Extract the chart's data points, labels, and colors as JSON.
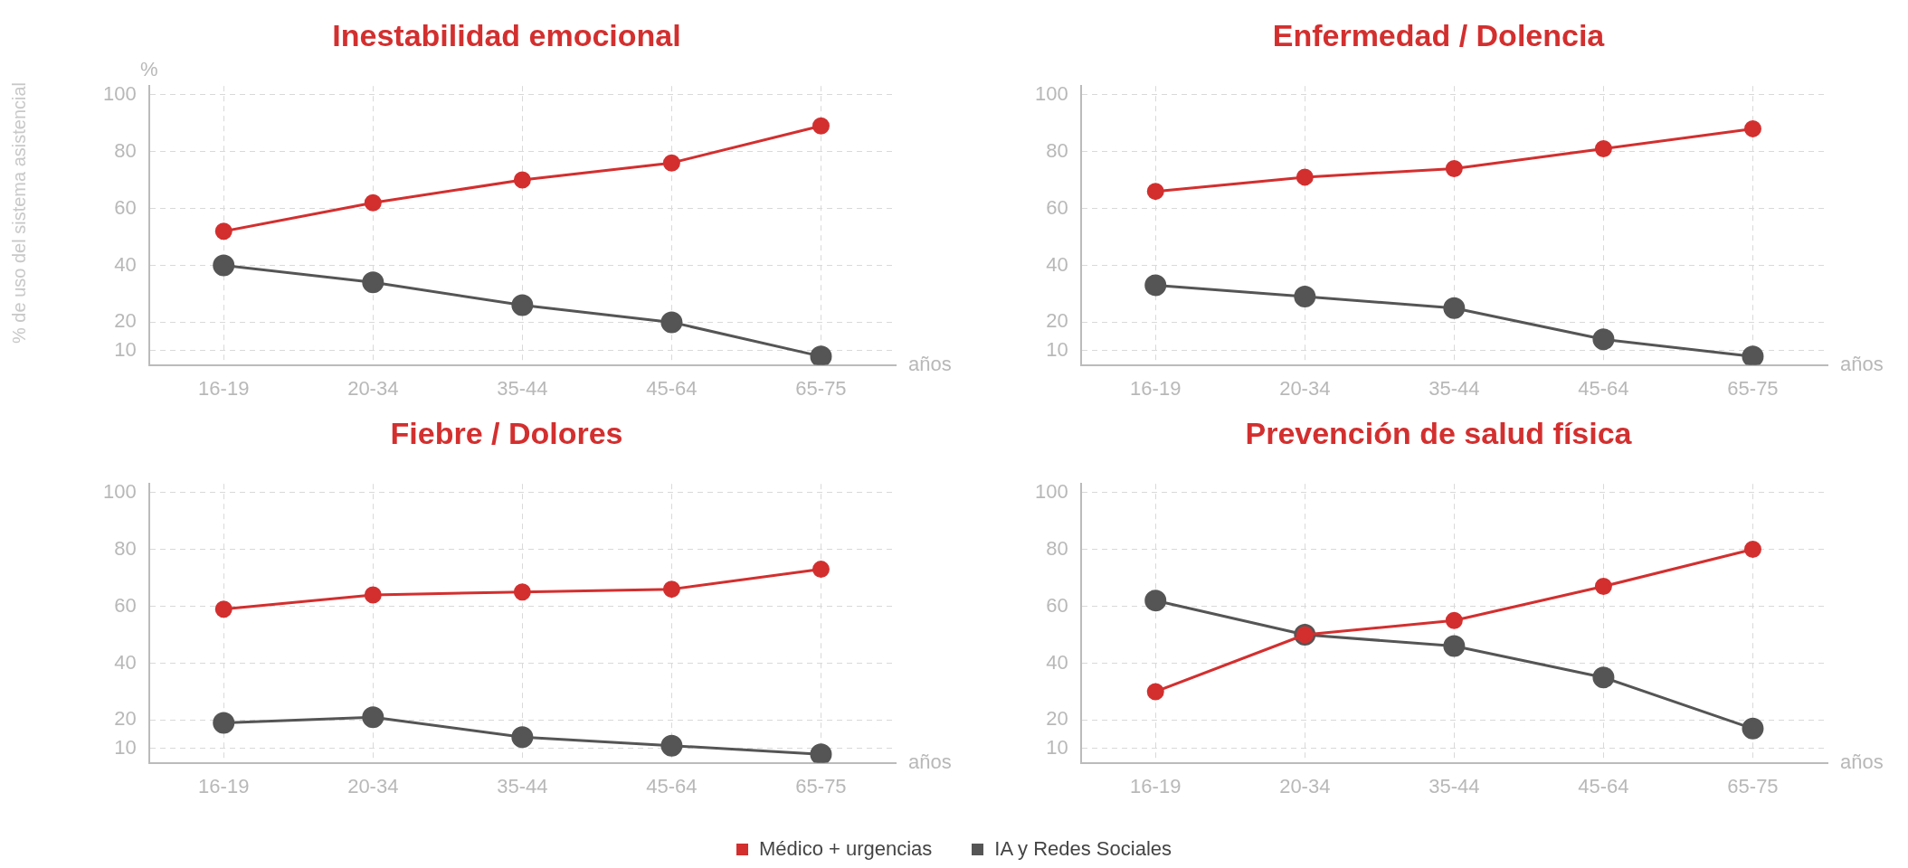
{
  "chart_data": [
    {
      "type": "line",
      "title": "Inestabilidad emocional",
      "ylabel": "% de uso del sistema asistencial",
      "xlabel": "años",
      "annotations": [
        "%"
      ],
      "categories": [
        "16-19",
        "20-34",
        "35-44",
        "45-64",
        "65-75"
      ],
      "ylim": [
        5,
        103
      ],
      "yticks": [
        10,
        20,
        40,
        60,
        80,
        100
      ],
      "grid": true,
      "marker": "circle",
      "line_style": "solid",
      "legend": "bottom",
      "series": [
        {
          "name": "Médico + urgencias",
          "color": "#d32f2f",
          "values": [
            52,
            62,
            70,
            76,
            89
          ]
        },
        {
          "name": "IA y Redes Sociales",
          "color": "#555555",
          "values": [
            40,
            34,
            26,
            20,
            8
          ]
        }
      ]
    },
    {
      "type": "line",
      "title": "Enfermedad / Dolencia",
      "xlabel": "años",
      "categories": [
        "16-19",
        "20-34",
        "35-44",
        "45-64",
        "65-75"
      ],
      "ylim": [
        5,
        103
      ],
      "yticks": [
        10,
        20,
        40,
        60,
        80,
        100
      ],
      "grid": true,
      "marker": "circle",
      "line_style": "solid",
      "legend": false,
      "series": [
        {
          "color": "#d32f2f",
          "values": [
            66,
            71,
            74,
            81,
            88
          ]
        },
        {
          "color": "#555555",
          "values": [
            33,
            29,
            25,
            14,
            8
          ]
        }
      ]
    },
    {
      "type": "line",
      "title": "Fiebre / Dolores",
      "xlabel": "años",
      "categories": [
        "16-19",
        "20-34",
        "35-44",
        "45-64",
        "65-75"
      ],
      "ylim": [
        5,
        103
      ],
      "yticks": [
        10,
        20,
        40,
        60,
        80,
        100
      ],
      "grid": true,
      "marker": "circle",
      "line_style": "solid",
      "legend": false,
      "series": [
        {
          "color": "#d32f2f",
          "values": [
            59,
            64,
            65,
            66,
            73
          ]
        },
        {
          "color": "#555555",
          "values": [
            19,
            21,
            14,
            11,
            8
          ]
        }
      ]
    },
    {
      "type": "line",
      "title": "Prevención de salud física",
      "xlabel": "años",
      "categories": [
        "16-19",
        "20-34",
        "35-44",
        "45-64",
        "65-75"
      ],
      "ylim": [
        5,
        103
      ],
      "yticks": [
        10,
        20,
        40,
        60,
        80,
        100
      ],
      "grid": true,
      "marker": "circle",
      "line_style": "solid",
      "series": [
        {
          "color": "#d32f2f",
          "values": [
            30,
            50,
            55,
            67,
            80
          ]
        },
        {
          "color": "#555555",
          "values": [
            62,
            50,
            46,
            35,
            17
          ]
        }
      ]
    }
  ]
}
